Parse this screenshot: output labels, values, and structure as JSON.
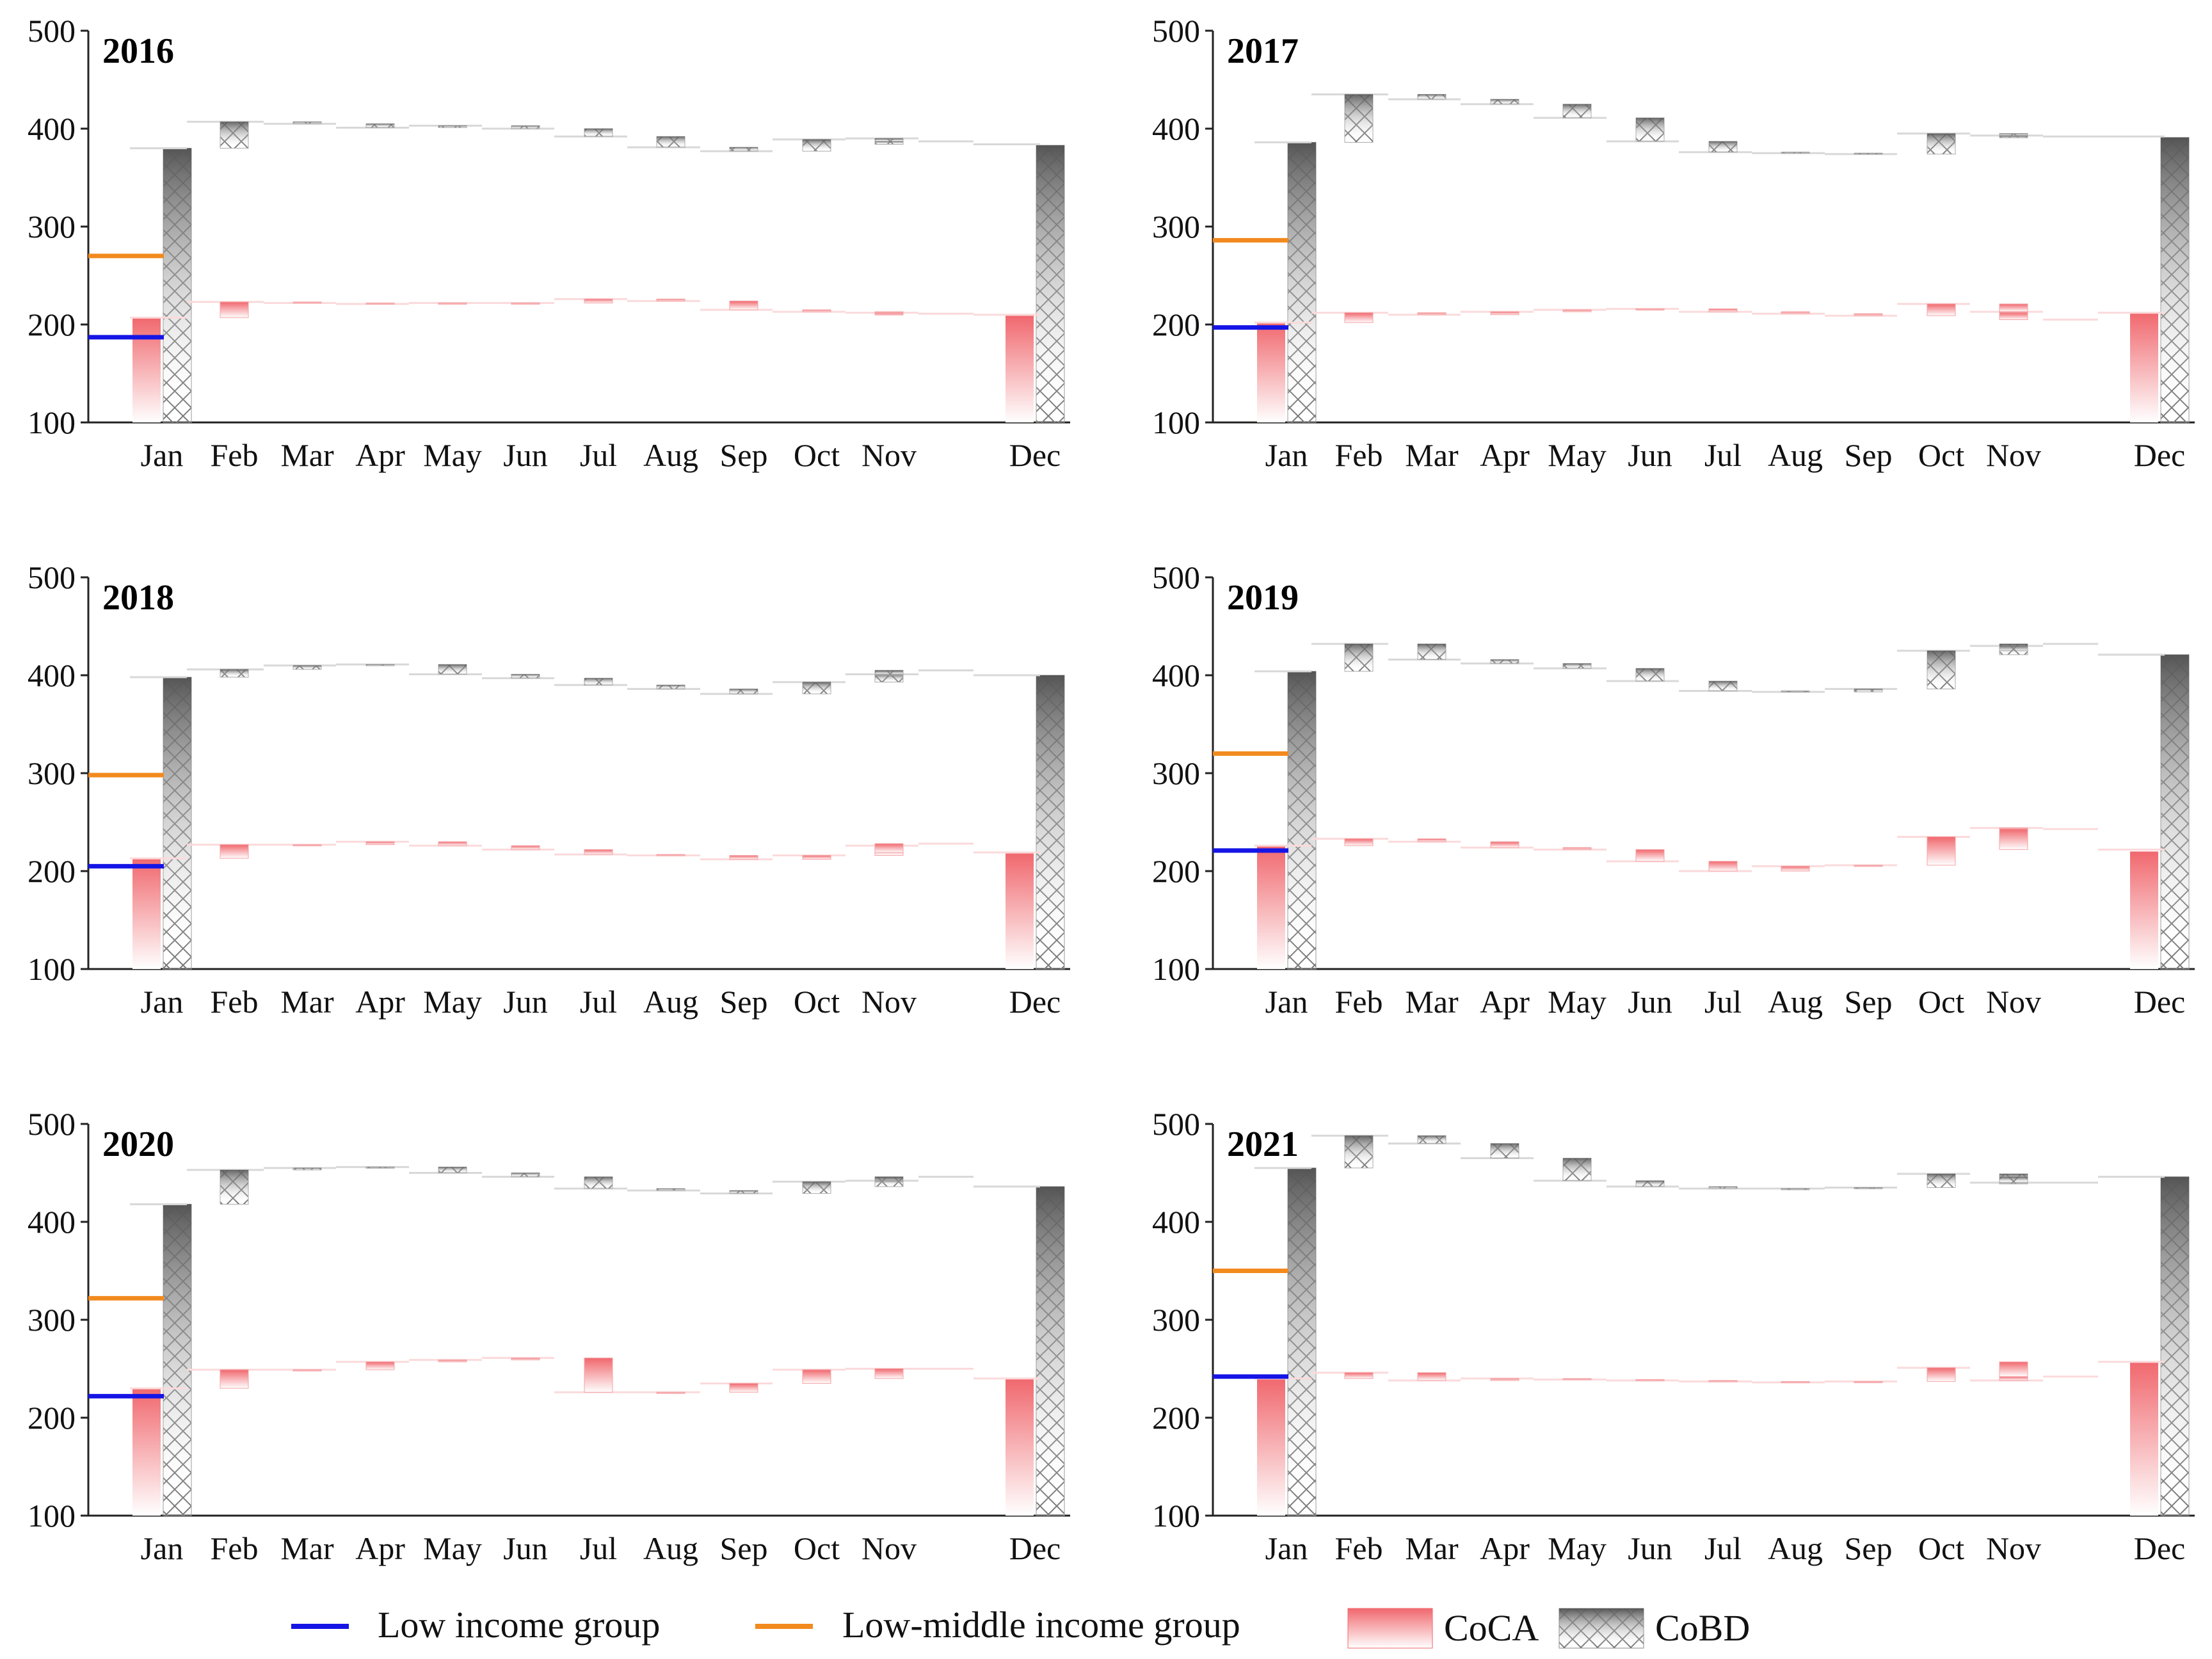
{
  "chart_data": [
    {
      "type": "waterfall",
      "title": "2016",
      "ylim": [
        100,
        500
      ],
      "yticks": [
        100,
        200,
        300,
        400,
        500
      ],
      "categories": [
        "Jan",
        "Feb",
        "Mar",
        "Apr",
        "May",
        "Jun",
        "Jul",
        "Aug",
        "Sep",
        "Oct",
        "Nov",
        "Dec"
      ],
      "low_income_line": 187,
      "low_middle_income_line": 270,
      "coca_jan": 207,
      "coca_monthly_levels": [
        207,
        223,
        222,
        221,
        222,
        222,
        226,
        224,
        215,
        213,
        212,
        211,
        210
      ],
      "coca_dec": 209,
      "cobd_jan": 380,
      "cobd_monthly_levels": [
        380,
        407,
        405,
        401,
        403,
        400,
        392,
        381,
        377,
        389,
        390,
        387,
        384
      ],
      "cobd_dec": 383
    },
    {
      "type": "waterfall",
      "title": "2017",
      "ylim": [
        100,
        500
      ],
      "yticks": [
        100,
        200,
        300,
        400,
        500
      ],
      "categories": [
        "Jan",
        "Feb",
        "Mar",
        "Apr",
        "May",
        "Jun",
        "Jul",
        "Aug",
        "Sep",
        "Oct",
        "Nov",
        "Dec"
      ],
      "low_income_line": 197,
      "low_middle_income_line": 286,
      "coca_jan": 202,
      "coca_monthly_levels": [
        202,
        212,
        210,
        213,
        215,
        216,
        213,
        211,
        209,
        221,
        213,
        205,
        212
      ],
      "coca_dec": 212,
      "cobd_jan": 386,
      "cobd_monthly_levels": [
        386,
        435,
        430,
        425,
        411,
        387,
        376,
        375,
        374,
        395,
        393,
        392,
        392
      ],
      "cobd_dec": 391
    },
    {
      "type": "waterfall",
      "title": "2018",
      "ylim": [
        100,
        500
      ],
      "yticks": [
        100,
        200,
        300,
        400,
        500
      ],
      "categories": [
        "Jan",
        "Feb",
        "Mar",
        "Apr",
        "May",
        "Jun",
        "Jul",
        "Aug",
        "Sep",
        "Oct",
        "Nov",
        "Dec"
      ],
      "low_income_line": 205,
      "low_middle_income_line": 298,
      "coca_jan": 213,
      "coca_monthly_levels": [
        213,
        227,
        227,
        230,
        226,
        222,
        217,
        216,
        212,
        216,
        226,
        228,
        219
      ],
      "coca_dec": 218,
      "cobd_jan": 398,
      "cobd_monthly_levels": [
        398,
        406,
        410,
        411,
        401,
        397,
        390,
        386,
        381,
        393,
        401,
        405,
        400
      ],
      "cobd_dec": 400
    },
    {
      "type": "waterfall",
      "title": "2019",
      "ylim": [
        100,
        500
      ],
      "yticks": [
        100,
        200,
        300,
        400,
        500
      ],
      "categories": [
        "Jan",
        "Feb",
        "Mar",
        "Apr",
        "May",
        "Jun",
        "Jul",
        "Aug",
        "Sep",
        "Oct",
        "Nov",
        "Dec"
      ],
      "low_income_line": 221,
      "low_middle_income_line": 320,
      "coca_jan": 226,
      "coca_monthly_levels": [
        226,
        233,
        230,
        224,
        222,
        210,
        200,
        205,
        206,
        235,
        244,
        243,
        222
      ],
      "coca_dec": 220,
      "cobd_jan": 404,
      "cobd_monthly_levels": [
        404,
        432,
        416,
        412,
        407,
        394,
        384,
        383,
        386,
        425,
        430,
        432,
        421
      ],
      "cobd_dec": 421
    },
    {
      "type": "waterfall",
      "title": "2020",
      "ylim": [
        100,
        500
      ],
      "yticks": [
        100,
        200,
        300,
        400,
        500
      ],
      "categories": [
        "Jan",
        "Feb",
        "Mar",
        "Apr",
        "May",
        "Jun",
        "Jul",
        "Aug",
        "Sep",
        "Oct",
        "Nov",
        "Dec"
      ],
      "low_income_line": 222,
      "low_middle_income_line": 322,
      "coca_jan": 230,
      "coca_monthly_levels": [
        230,
        249,
        249,
        257,
        259,
        261,
        226,
        226,
        235,
        249,
        250,
        250,
        240
      ],
      "coca_dec": 240,
      "cobd_jan": 418,
      "cobd_monthly_levels": [
        418,
        453,
        455,
        456,
        450,
        446,
        434,
        432,
        429,
        441,
        442,
        446,
        436
      ],
      "cobd_dec": 436
    },
    {
      "type": "waterfall",
      "title": "2021",
      "ylim": [
        100,
        500
      ],
      "yticks": [
        100,
        200,
        300,
        400,
        500
      ],
      "categories": [
        "Jan",
        "Feb",
        "Mar",
        "Apr",
        "May",
        "Jun",
        "Jul",
        "Aug",
        "Sep",
        "Oct",
        "Nov",
        "Dec"
      ],
      "low_income_line": 242,
      "low_middle_income_line": 350,
      "coca_jan": 240,
      "coca_monthly_levels": [
        240,
        246,
        238,
        240,
        239,
        238,
        237,
        236,
        237,
        251,
        238,
        242,
        257
      ],
      "coca_dec": 257,
      "cobd_jan": 455,
      "cobd_monthly_levels": [
        455,
        488,
        480,
        465,
        442,
        436,
        434,
        434,
        435,
        449,
        440,
        440,
        446
      ],
      "cobd_dec": 446
    }
  ],
  "legend": {
    "low_income": "Low income group",
    "low_middle_income": "Low-middle income group",
    "coca": "CoCA",
    "cobd": "CoBD"
  },
  "colors": {
    "low_income": "#1515e6",
    "low_middle_income": "#f28a1e",
    "coca": "#f0686e",
    "cobd": "#6e6e6e"
  }
}
